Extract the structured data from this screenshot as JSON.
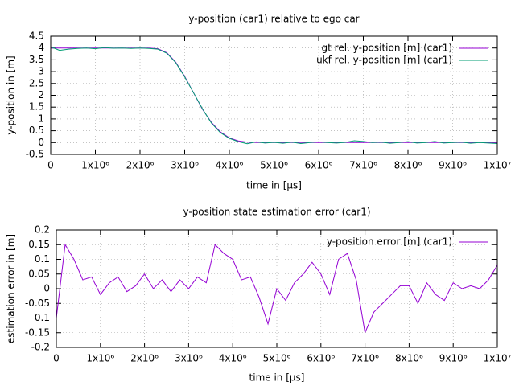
{
  "chart_data": [
    {
      "type": "line",
      "title": "y-position (car1) relative to ego car",
      "xlabel": "time in [μs]",
      "ylabel": "y-position in [m]",
      "x": [
        0,
        200000,
        400000,
        600000,
        800000,
        1000000,
        1200000,
        1400000,
        1600000,
        1800000,
        2000000,
        2200000,
        2400000,
        2600000,
        2800000,
        3000000,
        3200000,
        3400000,
        3600000,
        3800000,
        4000000,
        4200000,
        4400000,
        4600000,
        4800000,
        5000000,
        5200000,
        5400000,
        5600000,
        5800000,
        6000000,
        6200000,
        6400000,
        6600000,
        6800000,
        7000000,
        7200000,
        7400000,
        7600000,
        7800000,
        8000000,
        8200000,
        8400000,
        8600000,
        8800000,
        9000000,
        9200000,
        9400000,
        9600000,
        9800000,
        10000000
      ],
      "series": [
        {
          "name": "gt rel. y-position [m] (car1)",
          "color": "#9400d3",
          "values": [
            4,
            4,
            4,
            4,
            4,
            4,
            4,
            4,
            4,
            4,
            4,
            4,
            3.97,
            3.8,
            3.4,
            2.8,
            2.1,
            1.4,
            0.85,
            0.45,
            0.2,
            0.07,
            0.02,
            0,
            0,
            0,
            0,
            0,
            0,
            0,
            0,
            0,
            0,
            0,
            0,
            0,
            0,
            0,
            0,
            0,
            0,
            0,
            0,
            0,
            0,
            0,
            0,
            0,
            0,
            0,
            0
          ]
        },
        {
          "name": "ukf rel. y-position [m] (car1)",
          "color": "#009e73",
          "values": [
            4.05,
            3.9,
            3.95,
            3.98,
            4.0,
            3.97,
            4.02,
            3.99,
            4.0,
            3.98,
            4.0,
            3.98,
            3.95,
            3.78,
            3.38,
            2.78,
            2.1,
            1.42,
            0.82,
            0.42,
            0.18,
            0.04,
            -0.05,
            0.03,
            -0.02,
            0.01,
            -0.03,
            0.02,
            -0.04,
            0.0,
            0.03,
            0.0,
            -0.02,
            0.01,
            0.08,
            0.05,
            0.0,
            0.02,
            -0.03,
            0.0,
            0.04,
            -0.02,
            0.0,
            0.05,
            -0.02,
            0.0,
            0.02,
            -0.03,
            0.0,
            -0.02,
            -0.04
          ]
        }
      ],
      "xlim": [
        0,
        10000000
      ],
      "xticks": [
        0,
        {
          "value": 1000000,
          "label": "1x10⁶"
        },
        {
          "value": 2000000,
          "label": "2x10⁶"
        },
        {
          "value": 3000000,
          "label": "3x10⁶"
        },
        {
          "value": 4000000,
          "label": "4x10⁶"
        },
        {
          "value": 5000000,
          "label": "5x10⁶"
        },
        {
          "value": 6000000,
          "label": "6x10⁶"
        },
        {
          "value": 7000000,
          "label": "7x10⁶"
        },
        {
          "value": 8000000,
          "label": "8x10⁶"
        },
        {
          "value": 9000000,
          "label": "9x10⁶"
        },
        {
          "value": 10000000,
          "label": "1x10⁷"
        }
      ],
      "ylim": [
        -0.5,
        4.5
      ],
      "yticks": [
        -0.5,
        0,
        0.5,
        1,
        1.5,
        2,
        2.5,
        3,
        3.5,
        4,
        4.5
      ],
      "grid": true,
      "legend": "top-right"
    },
    {
      "type": "line",
      "title": "y-position state estimation error (car1)",
      "xlabel": "time in [μs]",
      "ylabel": "estimation error in [m]",
      "x": [
        0,
        200000,
        400000,
        600000,
        800000,
        1000000,
        1200000,
        1400000,
        1600000,
        1800000,
        2000000,
        2200000,
        2400000,
        2600000,
        2800000,
        3000000,
        3200000,
        3400000,
        3600000,
        3800000,
        4000000,
        4200000,
        4400000,
        4600000,
        4800000,
        5000000,
        5200000,
        5400000,
        5600000,
        5800000,
        6000000,
        6200000,
        6400000,
        6600000,
        6800000,
        7000000,
        7200000,
        7400000,
        7600000,
        7800000,
        8000000,
        8200000,
        8400000,
        8600000,
        8800000,
        9000000,
        9200000,
        9400000,
        9600000,
        9800000,
        10000000
      ],
      "series": [
        {
          "name": "y-position error [m] (car1)",
          "color": "#9400d3",
          "values": [
            -0.1,
            0.15,
            0.1,
            0.03,
            0.04,
            -0.02,
            0.02,
            0.04,
            -0.01,
            0.01,
            0.05,
            0.0,
            0.03,
            -0.01,
            0.03,
            0.0,
            0.04,
            0.02,
            0.15,
            0.12,
            0.1,
            0.03,
            0.04,
            -0.03,
            -0.12,
            0.0,
            -0.04,
            0.02,
            0.05,
            0.09,
            0.05,
            -0.02,
            0.1,
            0.12,
            0.03,
            -0.15,
            -0.08,
            -0.05,
            -0.02,
            0.01,
            0.01,
            -0.05,
            0.02,
            -0.02,
            -0.04,
            0.02,
            0.0,
            0.01,
            0.0,
            0.03,
            0.08
          ]
        }
      ],
      "xlim": [
        0,
        10000000
      ],
      "xticks": [
        0,
        {
          "value": 1000000,
          "label": "1x10⁶"
        },
        {
          "value": 2000000,
          "label": "2x10⁶"
        },
        {
          "value": 3000000,
          "label": "3x10⁶"
        },
        {
          "value": 4000000,
          "label": "4x10⁶"
        },
        {
          "value": 5000000,
          "label": "5x10⁶"
        },
        {
          "value": 6000000,
          "label": "6x10⁶"
        },
        {
          "value": 7000000,
          "label": "7x10⁶"
        },
        {
          "value": 8000000,
          "label": "8x10⁶"
        },
        {
          "value": 9000000,
          "label": "9x10⁶"
        },
        {
          "value": 10000000,
          "label": "1x10⁷"
        }
      ],
      "ylim": [
        -0.2,
        0.2
      ],
      "yticks": [
        -0.2,
        -0.15,
        -0.1,
        -0.05,
        0,
        0.05,
        0.1,
        0.15,
        0.2
      ],
      "grid": true,
      "legend": "top-right"
    }
  ]
}
